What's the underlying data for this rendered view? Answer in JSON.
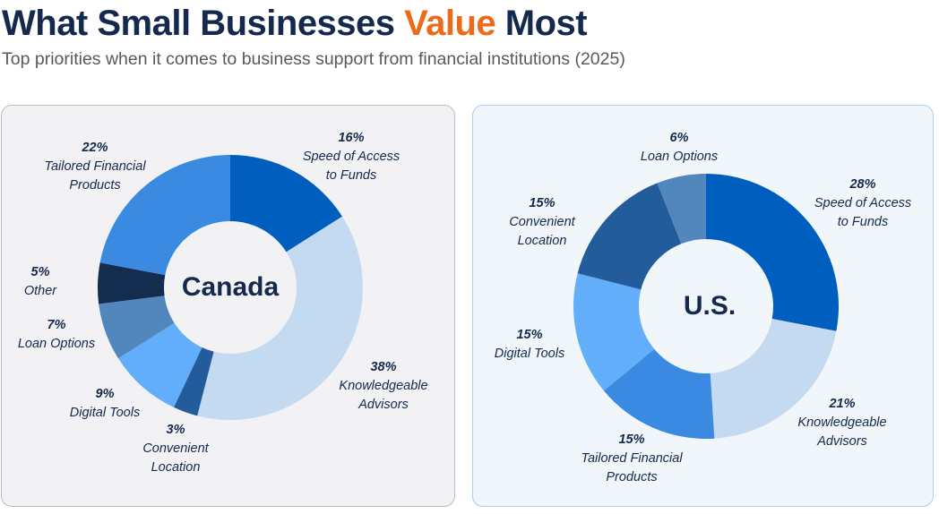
{
  "header": {
    "title_part1": "What Small Businesses ",
    "title_accent": "Value",
    "title_part2": " Most",
    "subtitle": "Top priorities when it comes to business support from financial institutions (2025)"
  },
  "colors": {
    "title": "#14294d",
    "accent": "#ec6a1a",
    "speed": "#005ebf",
    "knowledgeable": "#c3daf1",
    "convenient": "#235c9b",
    "digital": "#62aefa",
    "loan": "#5287bd",
    "other": "#142c4d",
    "tailored": "#3a8ae2"
  },
  "chart_data": [
    {
      "type": "pie",
      "donut": true,
      "title": "Canada",
      "categories": [
        "Speed of Access to Funds",
        "Knowledgeable Advisors",
        "Convenient Location",
        "Digital Tools",
        "Loan Options",
        "Other",
        "Tailored Financial Products"
      ],
      "values": [
        16,
        38,
        3,
        9,
        7,
        5,
        22
      ],
      "unit": "%",
      "start_angle": "12 o'clock, clockwise"
    },
    {
      "type": "pie",
      "donut": true,
      "title": "U.S.",
      "categories": [
        "Speed of Access to Funds",
        "Knowledgeable Advisors",
        "Tailored Financial Products",
        "Digital Tools",
        "Convenient Location",
        "Loan Options"
      ],
      "values": [
        28,
        21,
        15,
        15,
        15,
        6
      ],
      "unit": "%",
      "start_angle": "12 o'clock, clockwise"
    }
  ],
  "canada": {
    "center_label": "Canada",
    "labels": [
      {
        "pct": "16%",
        "line1": "Speed of Access",
        "line2": "to Funds"
      },
      {
        "pct": "38%",
        "line1": "Knowledgeable",
        "line2": "Advisors"
      },
      {
        "pct": "3%",
        "line1": "Convenient",
        "line2": "Location"
      },
      {
        "pct": "9%",
        "line1": "Digital Tools",
        "line2": ""
      },
      {
        "pct": "7%",
        "line1": "Loan Options",
        "line2": ""
      },
      {
        "pct": "5%",
        "line1": "Other",
        "line2": ""
      },
      {
        "pct": "22%",
        "line1": "Tailored Financial",
        "line2": "Products"
      }
    ]
  },
  "us": {
    "center_label": "U.S.",
    "labels": [
      {
        "pct": "28%",
        "line1": "Speed of Access",
        "line2": "to Funds"
      },
      {
        "pct": "21%",
        "line1": "Knowledgeable",
        "line2": "Advisors"
      },
      {
        "pct": "15%",
        "line1": "Tailored Financial",
        "line2": "Products"
      },
      {
        "pct": "15%",
        "line1": "Digital Tools",
        "line2": ""
      },
      {
        "pct": "15%",
        "line1": "Convenient",
        "line2": "Location"
      },
      {
        "pct": "6%",
        "line1": "Loan Options",
        "line2": ""
      }
    ]
  }
}
